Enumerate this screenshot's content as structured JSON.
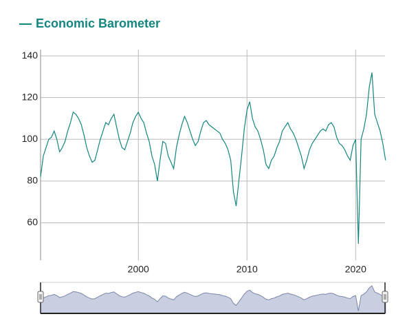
{
  "chart_data": {
    "type": "line",
    "x": [
      1991,
      1991.25,
      1991.5,
      1991.75,
      1992,
      1992.25,
      1992.5,
      1992.75,
      1993,
      1993.25,
      1993.5,
      1993.75,
      1994,
      1994.25,
      1994.5,
      1994.75,
      1995,
      1995.25,
      1995.5,
      1995.75,
      1996,
      1996.25,
      1996.5,
      1996.75,
      1997,
      1997.25,
      1997.5,
      1997.75,
      1998,
      1998.25,
      1998.5,
      1998.75,
      1999,
      1999.25,
      1999.5,
      1999.75,
      2000,
      2000.25,
      2000.5,
      2000.75,
      2001,
      2001.25,
      2001.5,
      2001.75,
      2002,
      2002.25,
      2002.5,
      2002.75,
      2003,
      2003.25,
      2003.5,
      2003.75,
      2004,
      2004.25,
      2004.5,
      2004.75,
      2005,
      2005.25,
      2005.5,
      2005.75,
      2006,
      2006.25,
      2006.5,
      2006.75,
      2007,
      2007.25,
      2007.5,
      2007.75,
      2008,
      2008.25,
      2008.5,
      2008.75,
      2009,
      2009.25,
      2009.5,
      2009.75,
      2010,
      2010.25,
      2010.5,
      2010.75,
      2011,
      2011.25,
      2011.5,
      2011.75,
      2012,
      2012.25,
      2012.5,
      2012.75,
      2013,
      2013.25,
      2013.5,
      2013.75,
      2014,
      2014.25,
      2014.5,
      2014.75,
      2015,
      2015.25,
      2015.5,
      2015.75,
      2016,
      2016.25,
      2016.5,
      2016.75,
      2017,
      2017.25,
      2017.5,
      2017.75,
      2018,
      2018.25,
      2018.5,
      2018.75,
      2019,
      2019.25,
      2019.5,
      2019.75,
      2020,
      2020.25,
      2020.5,
      2020.75,
      2021,
      2021.25,
      2021.5,
      2021.75,
      2022,
      2022.25,
      2022.5,
      2022.75
    ],
    "series": [
      {
        "name": "Economic Barometer",
        "color": "#14857f",
        "values": [
          82,
          92,
          96,
          100,
          101,
          104,
          100,
          94,
          96,
          99,
          104,
          108,
          113,
          112,
          110,
          107,
          102,
          96,
          92,
          89,
          90,
          95,
          100,
          104,
          108,
          107,
          110,
          112,
          106,
          100,
          96,
          95,
          99,
          103,
          108,
          111,
          113,
          110,
          108,
          103,
          99,
          92,
          88,
          80,
          90,
          99,
          98,
          92,
          89,
          86,
          96,
          102,
          107,
          111,
          108,
          104,
          100,
          97,
          99,
          104,
          108,
          109,
          107,
          106,
          105,
          104,
          103,
          100,
          98,
          95,
          90,
          75,
          68,
          80,
          92,
          105,
          114,
          118,
          110,
          106,
          104,
          100,
          95,
          88,
          86,
          90,
          92,
          96,
          99,
          104,
          106,
          108,
          105,
          103,
          100,
          96,
          92,
          86,
          90,
          95,
          98,
          100,
          102,
          104,
          105,
          104,
          107,
          108,
          106,
          101,
          98,
          97,
          95,
          92,
          90,
          97,
          100,
          50,
          100,
          105,
          112,
          125,
          132,
          112,
          108,
          104,
          98,
          90
        ]
      }
    ],
    "xlim": [
      1991,
      2022.7
    ],
    "ylim": [
      42,
      143
    ],
    "xticks": [
      2000,
      2010,
      2020
    ],
    "yticks": [
      60,
      80,
      100,
      120,
      140
    ],
    "grid": true
  }
}
